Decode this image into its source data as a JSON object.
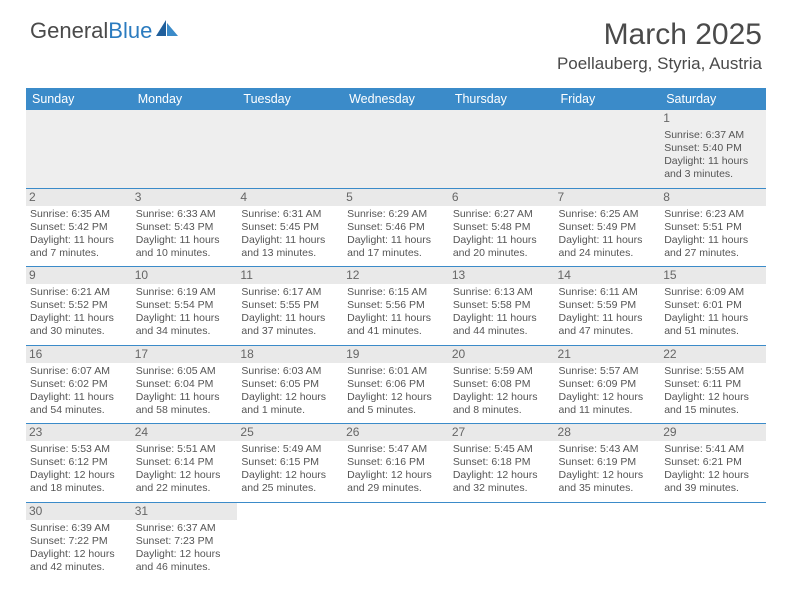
{
  "logo": {
    "text1": "General",
    "text2": "Blue"
  },
  "title": "March 2025",
  "location": "Poellauberg, Styria, Austria",
  "colors": {
    "header_bg": "#3b8bc9",
    "header_text": "#ffffff",
    "cell_border": "#3b8bc9",
    "daynum_bg": "#e9e9e9",
    "empty_bg": "#eeeeee",
    "text": "#555555"
  },
  "day_headers": [
    "Sunday",
    "Monday",
    "Tuesday",
    "Wednesday",
    "Thursday",
    "Friday",
    "Saturday"
  ],
  "weeks": [
    [
      null,
      null,
      null,
      null,
      null,
      null,
      {
        "n": "1",
        "sr": "Sunrise: 6:37 AM",
        "ss": "Sunset: 5:40 PM",
        "d1": "Daylight: 11 hours",
        "d2": "and 3 minutes."
      }
    ],
    [
      {
        "n": "2",
        "sr": "Sunrise: 6:35 AM",
        "ss": "Sunset: 5:42 PM",
        "d1": "Daylight: 11 hours",
        "d2": "and 7 minutes."
      },
      {
        "n": "3",
        "sr": "Sunrise: 6:33 AM",
        "ss": "Sunset: 5:43 PM",
        "d1": "Daylight: 11 hours",
        "d2": "and 10 minutes."
      },
      {
        "n": "4",
        "sr": "Sunrise: 6:31 AM",
        "ss": "Sunset: 5:45 PM",
        "d1": "Daylight: 11 hours",
        "d2": "and 13 minutes."
      },
      {
        "n": "5",
        "sr": "Sunrise: 6:29 AM",
        "ss": "Sunset: 5:46 PM",
        "d1": "Daylight: 11 hours",
        "d2": "and 17 minutes."
      },
      {
        "n": "6",
        "sr": "Sunrise: 6:27 AM",
        "ss": "Sunset: 5:48 PM",
        "d1": "Daylight: 11 hours",
        "d2": "and 20 minutes."
      },
      {
        "n": "7",
        "sr": "Sunrise: 6:25 AM",
        "ss": "Sunset: 5:49 PM",
        "d1": "Daylight: 11 hours",
        "d2": "and 24 minutes."
      },
      {
        "n": "8",
        "sr": "Sunrise: 6:23 AM",
        "ss": "Sunset: 5:51 PM",
        "d1": "Daylight: 11 hours",
        "d2": "and 27 minutes."
      }
    ],
    [
      {
        "n": "9",
        "sr": "Sunrise: 6:21 AM",
        "ss": "Sunset: 5:52 PM",
        "d1": "Daylight: 11 hours",
        "d2": "and 30 minutes."
      },
      {
        "n": "10",
        "sr": "Sunrise: 6:19 AM",
        "ss": "Sunset: 5:54 PM",
        "d1": "Daylight: 11 hours",
        "d2": "and 34 minutes."
      },
      {
        "n": "11",
        "sr": "Sunrise: 6:17 AM",
        "ss": "Sunset: 5:55 PM",
        "d1": "Daylight: 11 hours",
        "d2": "and 37 minutes."
      },
      {
        "n": "12",
        "sr": "Sunrise: 6:15 AM",
        "ss": "Sunset: 5:56 PM",
        "d1": "Daylight: 11 hours",
        "d2": "and 41 minutes."
      },
      {
        "n": "13",
        "sr": "Sunrise: 6:13 AM",
        "ss": "Sunset: 5:58 PM",
        "d1": "Daylight: 11 hours",
        "d2": "and 44 minutes."
      },
      {
        "n": "14",
        "sr": "Sunrise: 6:11 AM",
        "ss": "Sunset: 5:59 PM",
        "d1": "Daylight: 11 hours",
        "d2": "and 47 minutes."
      },
      {
        "n": "15",
        "sr": "Sunrise: 6:09 AM",
        "ss": "Sunset: 6:01 PM",
        "d1": "Daylight: 11 hours",
        "d2": "and 51 minutes."
      }
    ],
    [
      {
        "n": "16",
        "sr": "Sunrise: 6:07 AM",
        "ss": "Sunset: 6:02 PM",
        "d1": "Daylight: 11 hours",
        "d2": "and 54 minutes."
      },
      {
        "n": "17",
        "sr": "Sunrise: 6:05 AM",
        "ss": "Sunset: 6:04 PM",
        "d1": "Daylight: 11 hours",
        "d2": "and 58 minutes."
      },
      {
        "n": "18",
        "sr": "Sunrise: 6:03 AM",
        "ss": "Sunset: 6:05 PM",
        "d1": "Daylight: 12 hours",
        "d2": "and 1 minute."
      },
      {
        "n": "19",
        "sr": "Sunrise: 6:01 AM",
        "ss": "Sunset: 6:06 PM",
        "d1": "Daylight: 12 hours",
        "d2": "and 5 minutes."
      },
      {
        "n": "20",
        "sr": "Sunrise: 5:59 AM",
        "ss": "Sunset: 6:08 PM",
        "d1": "Daylight: 12 hours",
        "d2": "and 8 minutes."
      },
      {
        "n": "21",
        "sr": "Sunrise: 5:57 AM",
        "ss": "Sunset: 6:09 PM",
        "d1": "Daylight: 12 hours",
        "d2": "and 11 minutes."
      },
      {
        "n": "22",
        "sr": "Sunrise: 5:55 AM",
        "ss": "Sunset: 6:11 PM",
        "d1": "Daylight: 12 hours",
        "d2": "and 15 minutes."
      }
    ],
    [
      {
        "n": "23",
        "sr": "Sunrise: 5:53 AM",
        "ss": "Sunset: 6:12 PM",
        "d1": "Daylight: 12 hours",
        "d2": "and 18 minutes."
      },
      {
        "n": "24",
        "sr": "Sunrise: 5:51 AM",
        "ss": "Sunset: 6:14 PM",
        "d1": "Daylight: 12 hours",
        "d2": "and 22 minutes."
      },
      {
        "n": "25",
        "sr": "Sunrise: 5:49 AM",
        "ss": "Sunset: 6:15 PM",
        "d1": "Daylight: 12 hours",
        "d2": "and 25 minutes."
      },
      {
        "n": "26",
        "sr": "Sunrise: 5:47 AM",
        "ss": "Sunset: 6:16 PM",
        "d1": "Daylight: 12 hours",
        "d2": "and 29 minutes."
      },
      {
        "n": "27",
        "sr": "Sunrise: 5:45 AM",
        "ss": "Sunset: 6:18 PM",
        "d1": "Daylight: 12 hours",
        "d2": "and 32 minutes."
      },
      {
        "n": "28",
        "sr": "Sunrise: 5:43 AM",
        "ss": "Sunset: 6:19 PM",
        "d1": "Daylight: 12 hours",
        "d2": "and 35 minutes."
      },
      {
        "n": "29",
        "sr": "Sunrise: 5:41 AM",
        "ss": "Sunset: 6:21 PM",
        "d1": "Daylight: 12 hours",
        "d2": "and 39 minutes."
      }
    ],
    [
      {
        "n": "30",
        "sr": "Sunrise: 6:39 AM",
        "ss": "Sunset: 7:22 PM",
        "d1": "Daylight: 12 hours",
        "d2": "and 42 minutes."
      },
      {
        "n": "31",
        "sr": "Sunrise: 6:37 AM",
        "ss": "Sunset: 7:23 PM",
        "d1": "Daylight: 12 hours",
        "d2": "and 46 minutes."
      },
      null,
      null,
      null,
      null,
      null
    ]
  ]
}
